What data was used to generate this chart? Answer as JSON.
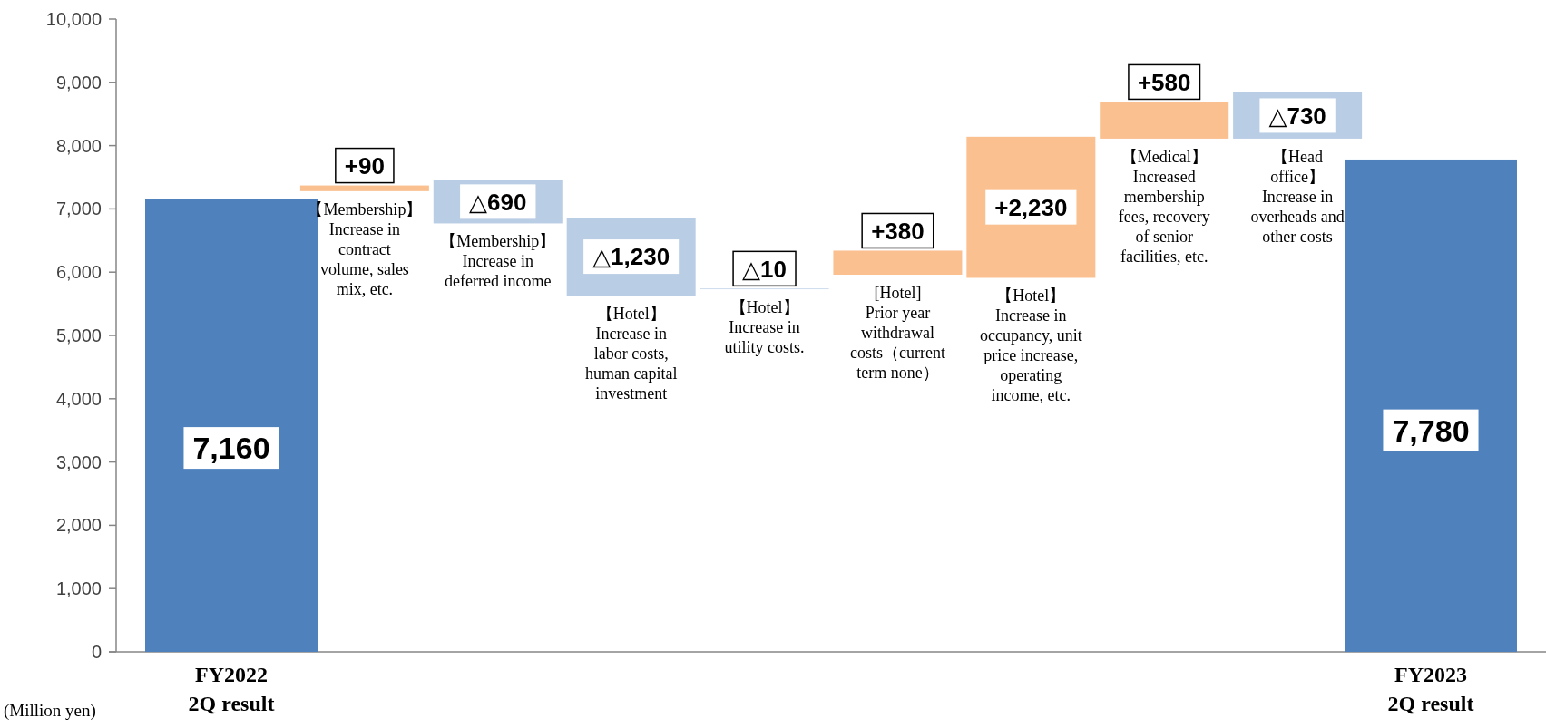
{
  "chart_data": {
    "type": "bar",
    "categories": [
      "FY2022 2Q result",
      null,
      null,
      null,
      null,
      null,
      null,
      null,
      null,
      "FY2023 2Q result"
    ],
    "values": [
      7160,
      90,
      -690,
      -1230,
      -10,
      380,
      2230,
      580,
      -730,
      7780
    ],
    "base": [
      0,
      7280,
      7460,
      6860,
      5740,
      5960,
      5910,
      8110,
      8840,
      0
    ],
    "colors": [
      "#4f81bd",
      "#fac090",
      "#b9cde5",
      "#b9cde5",
      "#b9cde5",
      "#fac090",
      "#fac090",
      "#fac090",
      "#b9cde5",
      "#4f81bd"
    ],
    "value_labels": [
      "7,160",
      "+90",
      "△690",
      "△1,230",
      "△10",
      "+380",
      "+2,230",
      "+580",
      "△730",
      "7,780"
    ],
    "ylim": [
      0,
      10000
    ],
    "yticks": [
      0,
      {
        "value": 1000,
        "label": "1,000"
      },
      {
        "value": 2000,
        "label": "2,000"
      },
      {
        "value": 3000,
        "label": "3,000"
      },
      {
        "value": 4000,
        "label": "4,000"
      },
      {
        "value": 5000,
        "label": "5,000"
      },
      {
        "value": 6000,
        "label": "6,000"
      },
      {
        "value": 7000,
        "label": "7,000"
      },
      {
        "value": 8000,
        "label": "8,000"
      },
      {
        "value": 9000,
        "label": "9,000"
      },
      {
        "value": 10000,
        "label": "10,000"
      }
    ],
    "annotations": [
      "【Membership】Increase in contract volume, sales mix, etc.",
      "【Membership】Increase in deferred income",
      "【Hotel】Increase in labor costs, human capital investment",
      "【Hotel】Increase in utility costs.",
      "[Hotel] Prior year withdrawal costs（current term none）",
      "【Hotel】Increase in occupancy, unit price increase, operating income, etc.",
      "【Medical】Increased membership fees, recovery of senior facilities, etc.",
      "【Head office】Increase in overheads and other costs",
      "(Million yen)"
    ]
  }
}
